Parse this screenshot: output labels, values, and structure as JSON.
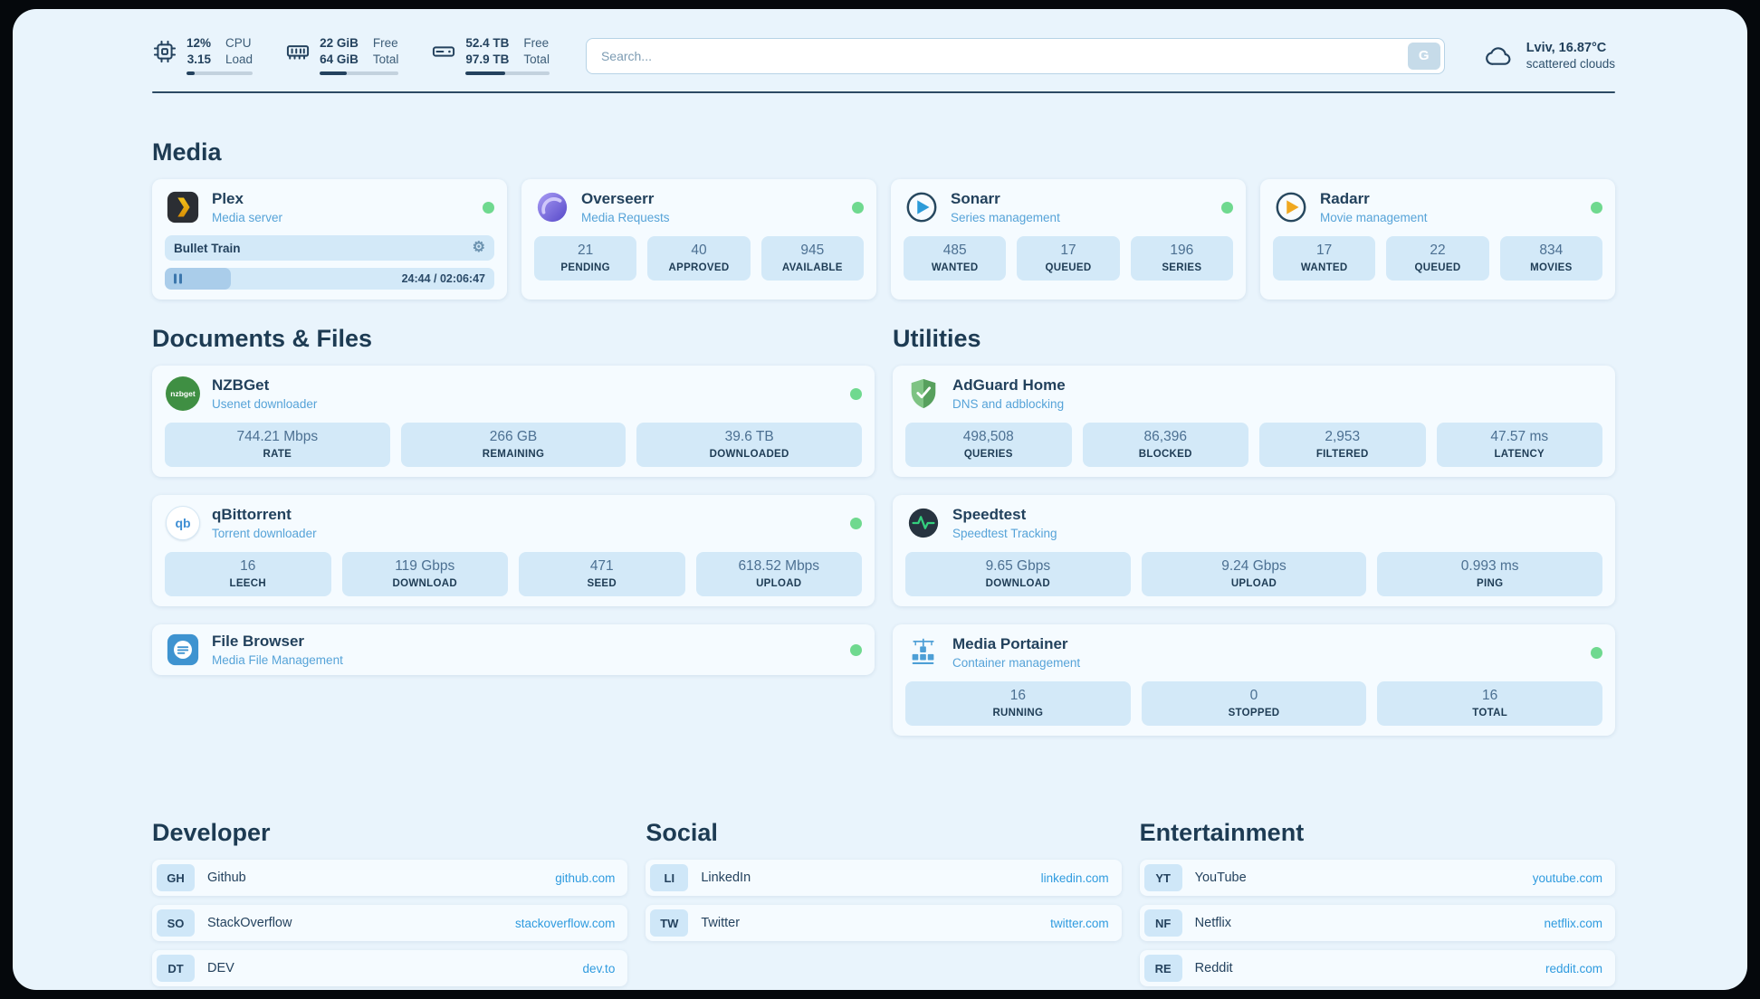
{
  "topbar": {
    "cpu": {
      "values": [
        "12%",
        "3.15"
      ],
      "labels": [
        "CPU",
        "Load"
      ],
      "bar_percent": 12
    },
    "memory": {
      "values": [
        "22 GiB",
        "64 GiB"
      ],
      "labels": [
        "Free",
        "Total"
      ],
      "bar_percent": 34
    },
    "storage": {
      "values": [
        "52.4 TB",
        "97.9 TB"
      ],
      "labels": [
        "Free",
        "Total"
      ],
      "bar_percent": 47
    },
    "search": {
      "placeholder": "Search...",
      "button_label": "G"
    },
    "weather": {
      "location": "Lviv, 16.87°C",
      "condition": "scattered clouds"
    }
  },
  "media": {
    "heading": "Media",
    "plex": {
      "title": "Plex",
      "subtitle": "Media server",
      "now_playing": "Bullet Train",
      "time": "24:44 / 02:06:47",
      "progress_percent": 20
    },
    "overseerr": {
      "title": "Overseerr",
      "subtitle": "Media Requests",
      "stats": [
        {
          "value": "21",
          "label": "PENDING"
        },
        {
          "value": "40",
          "label": "APPROVED"
        },
        {
          "value": "945",
          "label": "AVAILABLE"
        }
      ]
    },
    "sonarr": {
      "title": "Sonarr",
      "subtitle": "Series management",
      "stats": [
        {
          "value": "485",
          "label": "WANTED"
        },
        {
          "value": "17",
          "label": "QUEUED"
        },
        {
          "value": "196",
          "label": "SERIES"
        }
      ]
    },
    "radarr": {
      "title": "Radarr",
      "subtitle": "Movie management",
      "stats": [
        {
          "value": "17",
          "label": "WANTED"
        },
        {
          "value": "22",
          "label": "QUEUED"
        },
        {
          "value": "834",
          "label": "MOVIES"
        }
      ]
    }
  },
  "documents": {
    "heading": "Documents & Files",
    "nzbget": {
      "title": "NZBGet",
      "subtitle": "Usenet downloader",
      "icon_text": "nzbget",
      "stats": [
        {
          "value": "744.21 Mbps",
          "label": "RATE"
        },
        {
          "value": "266 GB",
          "label": "REMAINING"
        },
        {
          "value": "39.6 TB",
          "label": "DOWNLOADED"
        }
      ]
    },
    "qbittorrent": {
      "title": "qBittorrent",
      "subtitle": "Torrent downloader",
      "icon_text": "qb",
      "stats": [
        {
          "value": "16",
          "label": "LEECH"
        },
        {
          "value": "119 Gbps",
          "label": "DOWNLOAD"
        },
        {
          "value": "471",
          "label": "SEED"
        },
        {
          "value": "618.52 Mbps",
          "label": "UPLOAD"
        }
      ]
    },
    "filebrowser": {
      "title": "File Browser",
      "subtitle": "Media File Management"
    }
  },
  "utilities": {
    "heading": "Utilities",
    "adguard": {
      "title": "AdGuard Home",
      "subtitle": "DNS and adblocking",
      "stats": [
        {
          "value": "498,508",
          "label": "QUERIES"
        },
        {
          "value": "86,396",
          "label": "BLOCKED"
        },
        {
          "value": "2,953",
          "label": "FILTERED"
        },
        {
          "value": "47.57 ms",
          "label": "LATENCY"
        }
      ]
    },
    "speedtest": {
      "title": "Speedtest",
      "subtitle": "Speedtest Tracking",
      "stats": [
        {
          "value": "9.65 Gbps",
          "label": "DOWNLOAD"
        },
        {
          "value": "9.24 Gbps",
          "label": "UPLOAD"
        },
        {
          "value": "0.993 ms",
          "label": "PING"
        }
      ]
    },
    "portainer": {
      "title": "Media Portainer",
      "subtitle": "Container management",
      "stats": [
        {
          "value": "16",
          "label": "RUNNING"
        },
        {
          "value": "0",
          "label": "STOPPED"
        },
        {
          "value": "16",
          "label": "TOTAL"
        }
      ]
    }
  },
  "bookmarks": {
    "developer": {
      "heading": "Developer",
      "items": [
        {
          "abbr": "GH",
          "name": "Github",
          "url": "github.com"
        },
        {
          "abbr": "SO",
          "name": "StackOverflow",
          "url": "stackoverflow.com"
        },
        {
          "abbr": "DT",
          "name": "DEV",
          "url": "dev.to"
        }
      ]
    },
    "social": {
      "heading": "Social",
      "items": [
        {
          "abbr": "LI",
          "name": "LinkedIn",
          "url": "linkedin.com"
        },
        {
          "abbr": "TW",
          "name": "Twitter",
          "url": "twitter.com"
        }
      ]
    },
    "entertainment": {
      "heading": "Entertainment",
      "items": [
        {
          "abbr": "YT",
          "name": "YouTube",
          "url": "youtube.com"
        },
        {
          "abbr": "NF",
          "name": "Netflix",
          "url": "netflix.com"
        },
        {
          "abbr": "RE",
          "name": "Reddit",
          "url": "reddit.com"
        }
      ]
    }
  },
  "colors": {
    "accent": "#1d3b53",
    "link": "#2f9bdf",
    "status_ok": "#6fd98f",
    "stat_bg": "#d3e9f8"
  },
  "icons": {
    "pause": "pause-icon",
    "gear": "⚙"
  }
}
